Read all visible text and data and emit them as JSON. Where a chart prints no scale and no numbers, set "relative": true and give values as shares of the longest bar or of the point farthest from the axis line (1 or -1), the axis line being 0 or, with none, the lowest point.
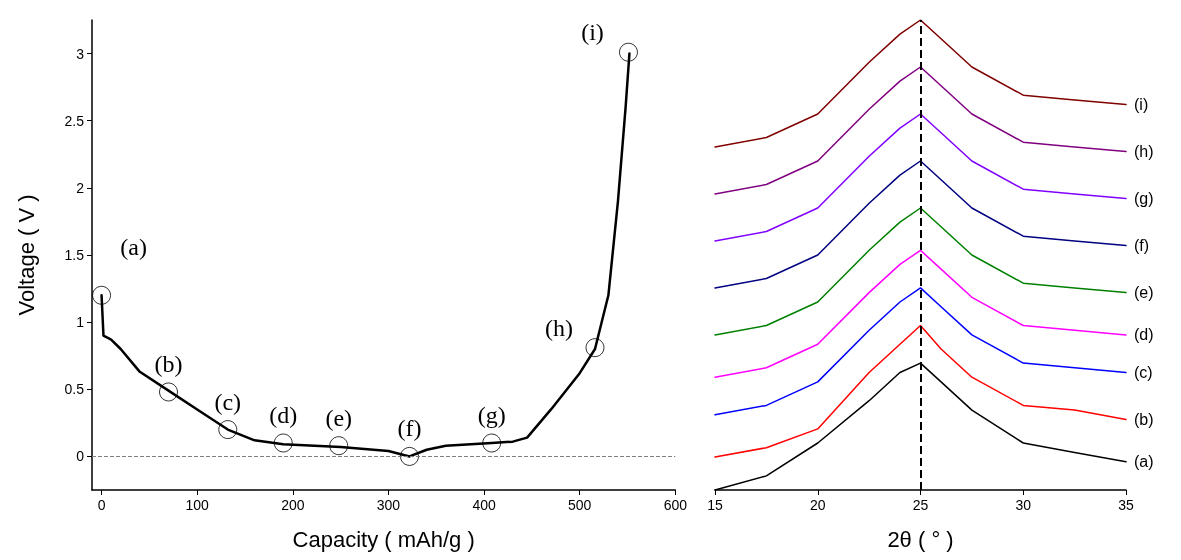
{
  "chart_data": [
    {
      "type": "line",
      "xlabel": "Capacity ( mAh/g )",
      "ylabel": "Voltage ( V )",
      "xlim": [
        -10,
        600
      ],
      "xticks": [
        0,
        100,
        200,
        300,
        400,
        500,
        600
      ],
      "ylim": [
        -0.25,
        3.25
      ],
      "yticks": [
        0,
        0.5,
        1,
        1.5,
        2,
        2.5,
        3
      ],
      "grid": false,
      "legend": false,
      "series": [
        {
          "type": "line",
          "color": "#000000",
          "marker": "none",
          "line_style": "solid",
          "x": [
            0,
            2,
            10,
            20,
            40,
            70,
            100,
            132,
            160,
            190,
            250,
            300,
            322,
            340,
            360,
            408,
            430,
            445,
            470,
            500,
            516,
            530,
            540,
            548,
            552
          ],
          "values": [
            1.2,
            0.9,
            0.87,
            0.8,
            0.63,
            0.49,
            0.35,
            0.2,
            0.12,
            0.09,
            0.07,
            0.04,
            0.0,
            0.05,
            0.08,
            0.1,
            0.11,
            0.14,
            0.35,
            0.62,
            0.8,
            1.2,
            1.9,
            2.6,
            3.0
          ]
        },
        {
          "type": "scatter",
          "color": "#000000",
          "marker": "circle",
          "x": [
            0,
            70,
            132,
            190,
            248,
            322,
            408,
            516,
            551
          ],
          "values": [
            1.2,
            0.48,
            0.2,
            0.1,
            0.08,
            0.0,
            0.1,
            0.81,
            3.01
          ]
        }
      ],
      "ref_lines": [
        {
          "axis": "y",
          "value": 0,
          "line_style": "dashed",
          "color": "#808080"
        }
      ],
      "annotations": [
        {
          "text": "(a)",
          "x": 0,
          "y": 1.2
        },
        {
          "text": "(b)",
          "x": 70,
          "y": 0.48
        },
        {
          "text": "(c)",
          "x": 132,
          "y": 0.2
        },
        {
          "text": "(d)",
          "x": 190,
          "y": 0.1
        },
        {
          "text": "(e)",
          "x": 248,
          "y": 0.08
        },
        {
          "text": "(f)",
          "x": 322,
          "y": 0.0
        },
        {
          "text": "(g)",
          "x": 408,
          "y": 0.1
        },
        {
          "text": "(h)",
          "x": 516,
          "y": 0.81
        },
        {
          "text": "(i)",
          "x": 551,
          "y": 3.01
        }
      ]
    },
    {
      "type": "line",
      "xlabel": "2θ ( ° )",
      "relative": true,
      "xlim": [
        15,
        35
      ],
      "xticks": [
        15,
        20,
        25,
        30,
        35
      ],
      "grid": false,
      "legend": false,
      "marker": "none",
      "x": [
        15,
        17.5,
        20,
        22.5,
        24,
        25,
        26,
        27.5,
        30,
        32.5,
        35
      ],
      "series": [
        {
          "name": "(a)",
          "color": "#000000",
          "values": [
            0,
            0.03,
            0.1,
            0.19,
            0.25,
            0.27,
            0.23,
            0.17,
            0.1,
            0.08,
            0.06
          ]
        },
        {
          "name": "(b)",
          "color": "#ff0000",
          "values": [
            0.07,
            0.09,
            0.13,
            0.25,
            0.31,
            0.35,
            0.3,
            0.24,
            0.18,
            0.17,
            0.15
          ]
        },
        {
          "name": "(c)",
          "color": "#0000ff",
          "values": [
            0.16,
            0.18,
            0.23,
            0.34,
            0.4,
            0.43,
            0.39,
            0.33,
            0.27,
            0.26,
            0.25
          ]
        },
        {
          "name": "(d)",
          "color": "#ff00ff",
          "values": [
            0.24,
            0.26,
            0.31,
            0.42,
            0.48,
            0.51,
            0.47,
            0.41,
            0.35,
            0.34,
            0.33
          ]
        },
        {
          "name": "(e)",
          "color": "#008000",
          "values": [
            0.33,
            0.35,
            0.4,
            0.51,
            0.57,
            0.6,
            0.56,
            0.5,
            0.44,
            0.43,
            0.42
          ]
        },
        {
          "name": "(f)",
          "color": "#000080",
          "values": [
            0.43,
            0.45,
            0.5,
            0.61,
            0.67,
            0.7,
            0.66,
            0.6,
            0.54,
            0.53,
            0.52
          ]
        },
        {
          "name": "(g)",
          "color": "#8000ff",
          "values": [
            0.53,
            0.55,
            0.6,
            0.71,
            0.77,
            0.8,
            0.76,
            0.7,
            0.64,
            0.63,
            0.62
          ]
        },
        {
          "name": "(h)",
          "color": "#800080",
          "values": [
            0.63,
            0.65,
            0.7,
            0.81,
            0.87,
            0.9,
            0.86,
            0.8,
            0.74,
            0.73,
            0.72
          ]
        },
        {
          "name": "(i)",
          "color": "#800000",
          "values": [
            0.73,
            0.75,
            0.8,
            0.91,
            0.97,
            1.0,
            0.96,
            0.9,
            0.84,
            0.83,
            0.82
          ]
        }
      ],
      "ref_lines": [
        {
          "axis": "x",
          "value": 25,
          "line_style": "dashed",
          "color": "#000000"
        }
      ]
    }
  ]
}
